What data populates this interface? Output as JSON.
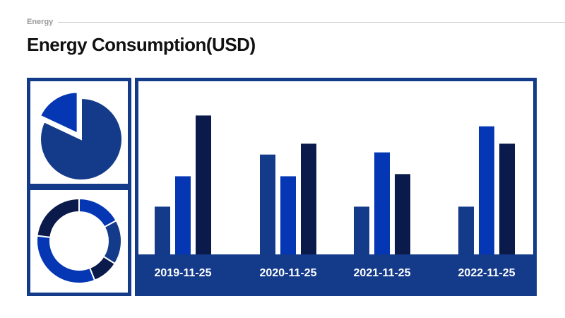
{
  "header": {
    "section_label": "Energy",
    "title": "Energy Consumption(USD)"
  },
  "colors": {
    "navy": "#143a8a",
    "blue": "#0537b4",
    "dark": "#0a1a4a"
  },
  "chart_data": [
    {
      "type": "pie",
      "slices": [
        {
          "value": 82,
          "color": "#143a8a",
          "exploded": false
        },
        {
          "value": 18,
          "color": "#0537b4",
          "exploded": true
        }
      ]
    },
    {
      "type": "pie",
      "donut": true,
      "slices": [
        {
          "value": 17,
          "color": "#0537b4"
        },
        {
          "value": 17,
          "color": "#143a8a"
        },
        {
          "value": 10,
          "color": "#0a1a4a"
        },
        {
          "value": 33,
          "color": "#0537b4"
        },
        {
          "value": 23,
          "color": "#0a1a4a"
        }
      ]
    },
    {
      "type": "bar",
      "categories": [
        "2019-11-25",
        "2020-11-25",
        "2021-11-25",
        "2022-11-25"
      ],
      "series": [
        {
          "color": "#143a8a",
          "values": [
            22,
            46,
            22,
            22
          ]
        },
        {
          "color": "#0537b4",
          "values": [
            36,
            36,
            47,
            59
          ]
        },
        {
          "color": "#0a1a4a",
          "values": [
            64,
            51,
            37,
            51
          ]
        }
      ],
      "ylim": [
        0,
        70
      ],
      "grid": false
    }
  ]
}
